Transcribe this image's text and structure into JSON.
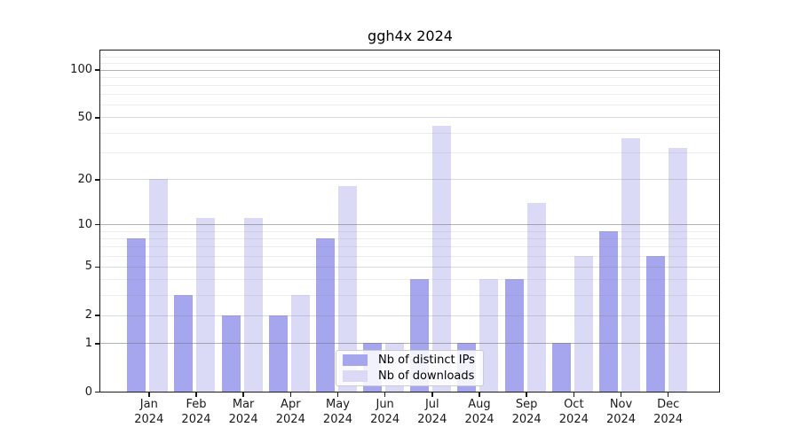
{
  "figure": {
    "title": "ggh4x 2024"
  },
  "chart_data": {
    "type": "bar",
    "title": "ggh4x 2024",
    "categories": [
      "Jan 2024",
      "Feb 2024",
      "Mar 2024",
      "Apr 2024",
      "May 2024",
      "Jun 2024",
      "Jul 2024",
      "Aug 2024",
      "Sep 2024",
      "Oct 2024",
      "Nov 2024",
      "Dec 2024"
    ],
    "series": [
      {
        "name": "Nb of distinct IPs",
        "color": "#a6a6ef",
        "values": [
          8,
          3,
          2,
          2,
          8,
          1,
          4,
          1,
          4,
          1,
          9,
          6
        ]
      },
      {
        "name": "Nb of downloads",
        "color": "#dadaf7",
        "values": [
          20,
          11,
          11,
          3,
          18,
          1,
          44,
          4,
          14,
          6,
          37,
          32
        ]
      }
    ],
    "xlabel": "",
    "ylabel": "",
    "yscale": "log1p",
    "yticks": [
      0,
      1,
      2,
      5,
      10,
      20,
      50,
      100
    ],
    "ytick_labels": [
      "0",
      "1",
      "2",
      "5",
      "10",
      "20",
      "50",
      "100"
    ],
    "ylim": [
      0,
      132
    ],
    "grid": {
      "on": true,
      "major": [
        1,
        10,
        100
      ],
      "mid": [
        2,
        5,
        20,
        50
      ],
      "minor": [
        3,
        4,
        6,
        7,
        8,
        9,
        30,
        40,
        60,
        70,
        80,
        90,
        110,
        120
      ]
    },
    "legend": {
      "position": "lower-center"
    }
  },
  "colors": {
    "background": "#ffffff",
    "spine": "#1a1a1a",
    "tick_label": "#1a1a1a",
    "legend_border": "#cccccc"
  }
}
